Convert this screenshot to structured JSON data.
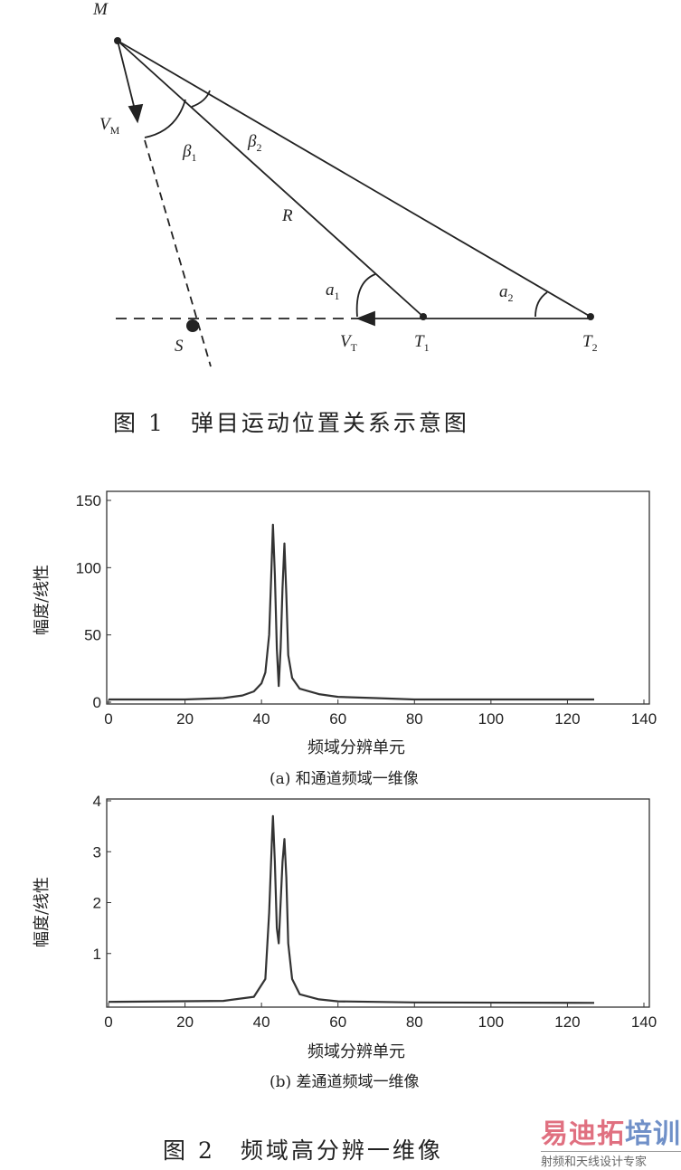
{
  "figure1": {
    "labels": {
      "M": "M",
      "VM": "V",
      "VM_sub": "M",
      "beta1": "β",
      "beta1_sub": "1",
      "beta2": "β",
      "beta2_sub": "2",
      "R": "R",
      "a1": "a",
      "a1_sub": "1",
      "a2": "a",
      "a2_sub": "2",
      "S": "S",
      "VT": "V",
      "VT_sub": "T",
      "T1": "T",
      "T1_sub": "1",
      "T2": "T",
      "T2_sub": "2"
    },
    "caption": "图 1　弹目运动位置关系示意图"
  },
  "figure2": {
    "caption": "图 2　频域高分辨一维像"
  },
  "chart_data": [
    {
      "type": "line",
      "title": "",
      "subcaption": "(a) 和通道频域一维像",
      "xlabel": "频域分辨单元",
      "ylabel": "幅度/线性",
      "xlim": [
        0,
        140
      ],
      "ylim": [
        0,
        150
      ],
      "xticks": [
        0,
        20,
        40,
        60,
        80,
        100,
        120,
        140
      ],
      "yticks": [
        0,
        50,
        100,
        150
      ],
      "grid": false,
      "series": [
        {
          "x": [
            0,
            10,
            20,
            30,
            35,
            38,
            40,
            41,
            42,
            42.5,
            43,
            43.5,
            44,
            44.5,
            45,
            45.5,
            46,
            46.5,
            47,
            48,
            50,
            55,
            60,
            70,
            80,
            100,
            127
          ],
          "y": [
            2,
            2,
            2,
            3,
            5,
            8,
            14,
            22,
            50,
            90,
            132,
            95,
            40,
            12,
            40,
            85,
            118,
            80,
            35,
            18,
            10,
            6,
            4,
            3,
            2,
            2,
            2
          ]
        }
      ]
    },
    {
      "type": "line",
      "title": "",
      "subcaption": "(b) 差通道频域一维像",
      "xlabel": "频域分辨单元",
      "ylabel": "幅度/线性",
      "xlim": [
        0,
        140
      ],
      "ylim": [
        0,
        4
      ],
      "xticks": [
        0,
        20,
        40,
        60,
        80,
        100,
        120,
        140
      ],
      "yticks": [
        1,
        2,
        3,
        4
      ],
      "grid": false,
      "series": [
        {
          "x": [
            0,
            30,
            38,
            41,
            42,
            42.7,
            43,
            43.5,
            44,
            44.5,
            45,
            45.5,
            46,
            46.5,
            47,
            48,
            50,
            55,
            60,
            80,
            127
          ],
          "y": [
            0.05,
            0.07,
            0.15,
            0.5,
            1.8,
            3.2,
            3.7,
            2.8,
            1.5,
            1.2,
            2,
            2.8,
            3.25,
            2.5,
            1.2,
            0.5,
            0.2,
            0.1,
            0.06,
            0.04,
            0.03
          ]
        }
      ]
    }
  ],
  "watermark": {
    "line1_a": "易迪拓",
    "line1_b": "培训",
    "line2": "射频和天线设计专家",
    "color_a": "#e07080",
    "color_b": "#7090c8"
  }
}
